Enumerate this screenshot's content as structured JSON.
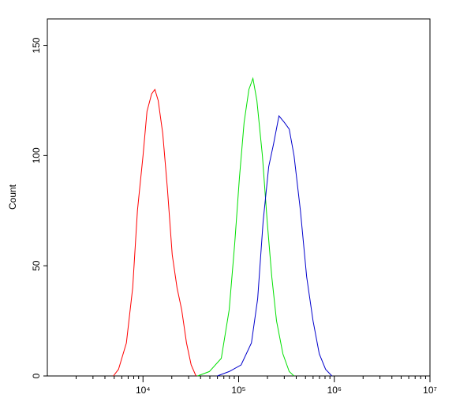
{
  "chart_data": {
    "type": "line",
    "ylabel": "Count",
    "xscale": "log",
    "xlim": [
      1000,
      10000000
    ],
    "ylim": [
      0,
      162
    ],
    "xticks": [
      {
        "value": 10000,
        "label": "10⁴"
      },
      {
        "value": 100000,
        "label": "10⁵"
      },
      {
        "value": 1000000,
        "label": "10⁶"
      },
      {
        "value": 10000000,
        "label": "10⁷"
      }
    ],
    "yticks": [
      0,
      50,
      100,
      150
    ],
    "series": [
      {
        "color": "#ff0000",
        "x": [
          4900,
          5550,
          6700,
          7800,
          8750,
          10000,
          11000,
          12300,
          13300,
          14400,
          16100,
          18000,
          20200,
          22700,
          25400,
          28500,
          31900,
          35800
        ],
        "values": [
          0,
          3,
          15,
          40,
          75,
          100,
          120,
          128,
          130,
          125,
          110,
          85,
          55,
          40,
          30,
          15,
          5,
          0
        ]
      },
      {
        "color": "#00e000",
        "x": [
          37200,
          49400,
          65800,
          79600,
          91000,
          102000,
          114000,
          128000,
          141000,
          155000,
          177000,
          199000,
          222000,
          249000,
          290000,
          338000,
          379000
        ],
        "values": [
          0,
          2,
          8,
          30,
          60,
          90,
          115,
          130,
          135,
          125,
          100,
          70,
          45,
          25,
          10,
          2,
          0
        ]
      },
      {
        "color": "#0000cc",
        "x": [
          59800,
          79600,
          106000,
          136000,
          158000,
          180000,
          206000,
          231000,
          264000,
          301000,
          338000,
          379000,
          442000,
          514000,
          599000,
          697000,
          811000,
          944000
        ],
        "values": [
          0,
          2,
          5,
          15,
          35,
          70,
          95,
          105,
          118,
          115,
          112,
          100,
          75,
          45,
          25,
          10,
          3,
          0
        ]
      }
    ]
  }
}
